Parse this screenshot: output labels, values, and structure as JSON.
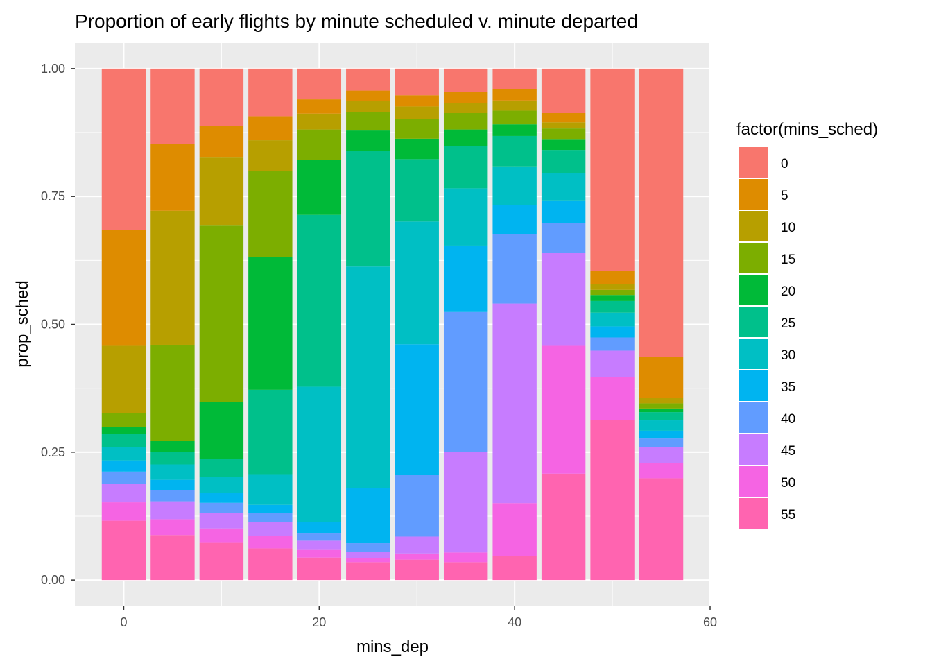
{
  "chart_data": {
    "type": "bar",
    "stacked": true,
    "position": "fill",
    "title": "Proportion of early flights by minute scheduled v. minute departed",
    "xlabel": "mins_dep",
    "ylabel": "prop_sched",
    "xlim": [
      -5,
      60
    ],
    "ylim": [
      0,
      1
    ],
    "x_ticks": [
      0,
      20,
      40,
      60
    ],
    "x_tick_labels": [
      "0",
      "20",
      "40",
      "60"
    ],
    "y_ticks": [
      0,
      0.25,
      0.5,
      0.75,
      1.0
    ],
    "y_tick_labels": [
      "0.00",
      "0.25",
      "0.50",
      "0.75",
      "1.00"
    ],
    "bar_width": 4.5,
    "grid": true,
    "legend_title": "factor(mins_sched)",
    "legend_position": "right",
    "categories": [
      0,
      5,
      10,
      15,
      20,
      25,
      30,
      35,
      40,
      45,
      50,
      55
    ],
    "series": [
      {
        "name": "0",
        "color": "#F8766D",
        "values": [
          0.315,
          0.147,
          0.112,
          0.093,
          0.06,
          0.043,
          0.052,
          0.045,
          0.04,
          0.087,
          0.4,
          0.558
        ]
      },
      {
        "name": "5",
        "color": "#DE8C00",
        "values": [
          0.227,
          0.131,
          0.062,
          0.047,
          0.028,
          0.02,
          0.022,
          0.022,
          0.023,
          0.018,
          0.025,
          0.08
        ]
      },
      {
        "name": "10",
        "color": "#B79F00",
        "values": [
          0.131,
          0.262,
          0.133,
          0.06,
          0.031,
          0.022,
          0.025,
          0.02,
          0.02,
          0.012,
          0.012,
          0.01
        ]
      },
      {
        "name": "15",
        "color": "#7CAE00",
        "values": [
          0.028,
          0.188,
          0.345,
          0.168,
          0.06,
          0.036,
          0.038,
          0.032,
          0.027,
          0.022,
          0.01,
          0.01
        ]
      },
      {
        "name": "20",
        "color": "#00BA38",
        "values": [
          0.014,
          0.021,
          0.111,
          0.26,
          0.107,
          0.04,
          0.04,
          0.032,
          0.023,
          0.02,
          0.012,
          0.007
        ]
      },
      {
        "name": "25",
        "color": "#00C08B",
        "values": [
          0.025,
          0.025,
          0.036,
          0.165,
          0.336,
          0.226,
          0.122,
          0.083,
          0.06,
          0.046,
          0.023,
          0.016
        ]
      },
      {
        "name": "30",
        "color": "#00BFC4",
        "values": [
          0.026,
          0.03,
          0.03,
          0.06,
          0.264,
          0.433,
          0.24,
          0.112,
          0.077,
          0.054,
          0.027,
          0.02
        ]
      },
      {
        "name": "35",
        "color": "#00B4F0",
        "values": [
          0.022,
          0.02,
          0.02,
          0.016,
          0.023,
          0.108,
          0.256,
          0.13,
          0.057,
          0.043,
          0.022,
          0.015
        ]
      },
      {
        "name": "40",
        "color": "#619CFF",
        "values": [
          0.024,
          0.022,
          0.02,
          0.018,
          0.014,
          0.017,
          0.12,
          0.274,
          0.137,
          0.058,
          0.026,
          0.017
        ]
      },
      {
        "name": "45",
        "color": "#C77CFF",
        "values": [
          0.036,
          0.035,
          0.03,
          0.027,
          0.018,
          0.012,
          0.033,
          0.196,
          0.394,
          0.182,
          0.052,
          0.03
        ]
      },
      {
        "name": "50",
        "color": "#F564E3",
        "values": [
          0.036,
          0.031,
          0.027,
          0.024,
          0.015,
          0.008,
          0.012,
          0.019,
          0.105,
          0.25,
          0.085,
          0.03
        ]
      },
      {
        "name": "55",
        "color": "#FF64B0",
        "values": [
          0.116,
          0.088,
          0.074,
          0.062,
          0.044,
          0.035,
          0.04,
          0.035,
          0.047,
          0.208,
          0.316,
          0.197
        ]
      }
    ]
  }
}
